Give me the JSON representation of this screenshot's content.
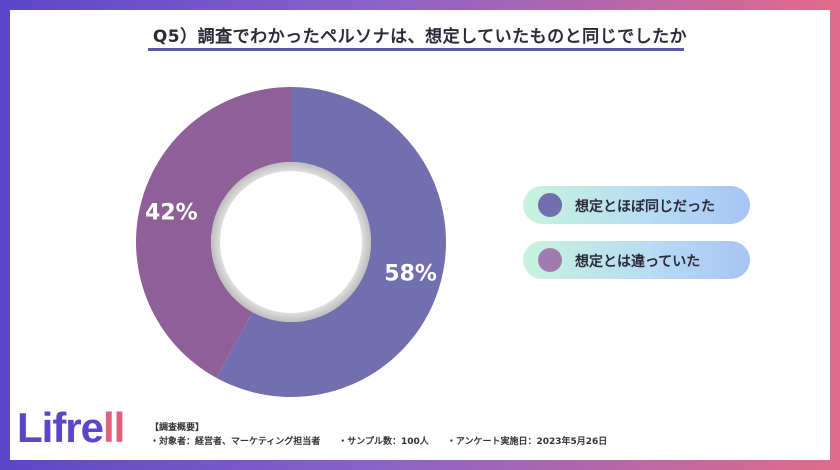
{
  "title": "Q5）調査でわかったペルソナは、想定していたものと同じでしたか",
  "chart_data": {
    "type": "pie",
    "style": "donut",
    "title": "Q5）調査でわかったペルソナは、想定していたものと同じでしたか",
    "categories": [
      "想定とほぼ同じだった",
      "想定とは違っていた"
    ],
    "values": [
      58,
      42
    ],
    "labels": [
      "58%",
      "42%"
    ],
    "colors": [
      "#736eae",
      "#8f5f98"
    ],
    "legend_position": "right"
  },
  "legend": [
    {
      "label": "想定とほぼ同じだった",
      "color": "#736eae"
    },
    {
      "label": "想定とは違っていた",
      "color": "#a27cb1"
    }
  ],
  "logo": {
    "main": "Lifre",
    "accent": "ll"
  },
  "survey": {
    "heading": "【調査概要】",
    "target": "・対象者：経営者、マーケティング担当者",
    "sample": "・サンプル数：100人",
    "date": "・アンケート実施日：2023年5月26日"
  }
}
